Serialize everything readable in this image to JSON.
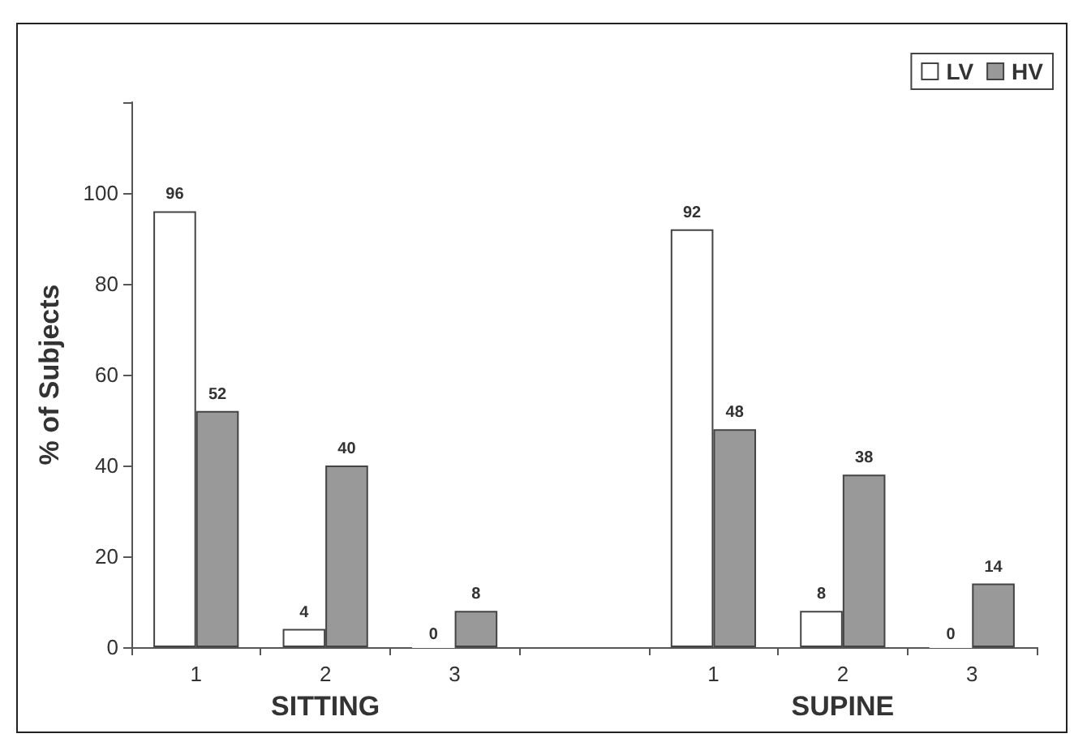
{
  "chart_data": {
    "type": "bar",
    "ylabel": "% of Subjects",
    "categories": [
      "1",
      "2",
      "3",
      null,
      "1",
      "2",
      "3"
    ],
    "series": [
      {
        "name": "LV",
        "color": "#ffffff",
        "values": [
          96,
          4,
          0,
          null,
          92,
          8,
          0
        ]
      },
      {
        "name": "HV",
        "color": "#999999",
        "values": [
          52,
          40,
          8,
          null,
          48,
          38,
          14
        ]
      }
    ],
    "ylim": [
      0,
      120
    ],
    "yticks": [
      0,
      20,
      40,
      60,
      80,
      100,
      {
        "value": 120,
        "label": null
      }
    ],
    "annotations": [
      "SITTING",
      "SUPINE"
    ],
    "data_labels": true,
    "legend": "top right",
    "grid": false
  }
}
